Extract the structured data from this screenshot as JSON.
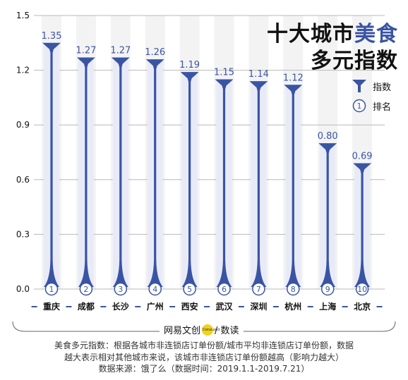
{
  "title": {
    "line1_prefix": "十大城市",
    "line1_accent": "美食",
    "line2": "多元指数"
  },
  "legend": {
    "index_label": "指数",
    "rank_label": "排名",
    "rank_symbol": "1"
  },
  "colors": {
    "accent": "#3a54a4",
    "light_bar": "#e8ebf7",
    "stripe": "#f3f3f3",
    "text": "#111111"
  },
  "chart_data": {
    "type": "bar",
    "title": "十大城市美食多元指数",
    "categories": [
      "重庆",
      "成都",
      "长沙",
      "广州",
      "西安",
      "武汉",
      "深圳",
      "杭州",
      "上海",
      "北京"
    ],
    "values": [
      1.35,
      1.27,
      1.27,
      1.26,
      1.19,
      1.15,
      1.14,
      1.12,
      0.8,
      0.69
    ],
    "value_labels": [
      "1.35",
      "1.27",
      "1.27",
      "1.26",
      "1.19",
      "1.15",
      "1.14",
      "1.12",
      "0.80",
      "0.69"
    ],
    "ranks": [
      "1",
      "2",
      "3",
      "4",
      "5",
      "6",
      "7",
      "8",
      "9",
      "10"
    ],
    "ylim": [
      0,
      1.5
    ],
    "yticks": [
      "0.0",
      "0.3",
      "0.6",
      "0.9",
      "1.2",
      "1.5"
    ],
    "ytick_values": [
      0,
      0.3,
      0.6,
      0.9,
      1.2,
      1.5
    ],
    "grid": true,
    "legend": "right"
  },
  "footer": {
    "brand_left": "网易文创",
    "brand_dot": "DataLand",
    "brand_right": "/ 数读",
    "note_line1": "美食多元指数：根据各城市非连锁店订单份额/城市平均非连锁店订单份额，数据",
    "note_line2": "越大表示相对其他城市来说，该城市非连锁店订单份额越高（影响力越大）",
    "note_line3": "数据来源：饿了么（数据时间：2019.1.1-2019.7.21）"
  }
}
